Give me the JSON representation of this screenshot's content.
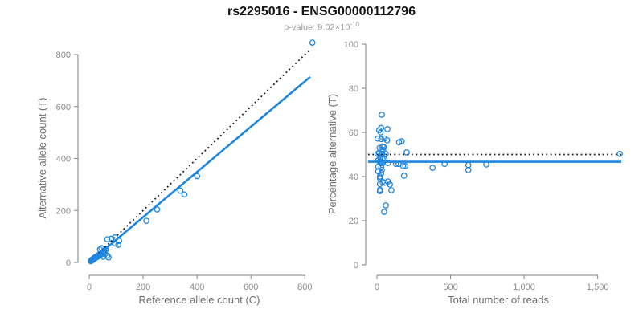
{
  "header": {
    "title": "rs2295016 - ENSG00000112796",
    "pvalue_prefix": "p-value: 9.02×10",
    "pvalue_exponent": "-10"
  },
  "colors": {
    "accent_blue": "#1f86e0",
    "dotted_black": "#1a1a1a",
    "axis_line": "#828282",
    "tick_label": "#8c8c8c",
    "axis_title": "#6e6e6e",
    "title": "#141414",
    "subtitle": "#9a9a9a",
    "background": "#ffffff"
  },
  "chart_data": [
    {
      "name": "allele-count-scatter",
      "type": "scatter",
      "xlabel": "Reference allele count (C)",
      "ylabel": "Alternative allele count (T)",
      "xlim": [
        0,
        800
      ],
      "ylim": [
        0,
        800
      ],
      "xticks": [
        0,
        200,
        400,
        600,
        800
      ],
      "xtick_labels": [
        "0",
        "200",
        "400",
        "600",
        "800"
      ],
      "yticks": [
        0,
        200,
        400,
        600,
        800
      ],
      "ytick_labels": [
        "0",
        "200",
        "400",
        "600",
        "800"
      ],
      "grid": false,
      "legend": "none",
      "point_color": "#1f86e0",
      "points": [
        [
          6,
          5
        ],
        [
          8,
          7
        ],
        [
          9,
          10
        ],
        [
          11,
          8
        ],
        [
          12,
          12
        ],
        [
          14,
          10
        ],
        [
          15,
          14
        ],
        [
          17,
          13
        ],
        [
          18,
          17
        ],
        [
          20,
          15
        ],
        [
          21,
          19
        ],
        [
          23,
          17
        ],
        [
          24,
          21
        ],
        [
          26,
          19
        ],
        [
          27,
          23
        ],
        [
          29,
          21
        ],
        [
          30,
          25
        ],
        [
          32,
          23
        ],
        [
          33,
          27
        ],
        [
          35,
          25
        ],
        [
          36,
          29
        ],
        [
          38,
          27
        ],
        [
          39,
          31
        ],
        [
          41,
          29
        ],
        [
          42,
          33
        ],
        [
          44,
          31
        ],
        [
          46,
          35
        ],
        [
          48,
          33
        ],
        [
          50,
          37
        ],
        [
          52,
          22
        ],
        [
          53,
          40
        ],
        [
          55,
          44
        ],
        [
          57,
          38
        ],
        [
          60,
          48
        ],
        [
          63,
          52
        ],
        [
          67,
          27
        ],
        [
          72,
          19
        ],
        [
          45,
          55
        ],
        [
          40,
          50
        ],
        [
          67,
          89
        ],
        [
          82,
          91
        ],
        [
          96,
          73
        ],
        [
          108,
          68
        ],
        [
          96,
          96
        ],
        [
          111,
          83
        ],
        [
          212,
          160
        ],
        [
          252,
          204
        ],
        [
          338,
          276
        ],
        [
          353,
          262
        ],
        [
          400,
          332
        ],
        [
          828,
          846
        ]
      ],
      "lines": [
        {
          "name": "identity",
          "style": "dotted",
          "color": "#1a1a1a",
          "width": 1.8,
          "x": [
            0,
            818
          ],
          "y": [
            0,
            818
          ]
        },
        {
          "name": "fit",
          "style": "solid",
          "color": "#1f86e0",
          "width": 2.6,
          "x": [
            0,
            820
          ],
          "y": [
            0,
            714
          ]
        }
      ]
    },
    {
      "name": "percentage-vs-reads-scatter",
      "type": "scatter",
      "xlabel": "Total number of reads",
      "ylabel": "Percentage alternative (T)",
      "xlim": [
        0,
        1500
      ],
      "ylim": [
        0,
        100
      ],
      "xticks": [
        0,
        500,
        1000,
        1500
      ],
      "xtick_labels": [
        "0",
        "500",
        "1,000",
        "1,500"
      ],
      "yticks": [
        0,
        20,
        40,
        60,
        80,
        100
      ],
      "ytick_labels": [
        "0",
        "20",
        "40",
        "60",
        "80",
        "100"
      ],
      "grid": false,
      "legend": "none",
      "point_color": "#1f86e0",
      "points": [
        [
          33,
          68
        ],
        [
          15,
          61
        ],
        [
          29,
          62
        ],
        [
          25,
          60
        ],
        [
          71,
          61.5
        ],
        [
          5,
          57.2
        ],
        [
          29,
          57
        ],
        [
          50,
          57.2
        ],
        [
          69,
          56.4
        ],
        [
          150,
          55.5
        ],
        [
          168,
          56
        ],
        [
          18,
          53
        ],
        [
          38,
          53.6
        ],
        [
          47,
          53.3
        ],
        [
          42,
          52
        ],
        [
          32,
          52.1
        ],
        [
          5,
          50.3
        ],
        [
          15,
          50.7
        ],
        [
          29,
          50
        ],
        [
          36,
          50.3
        ],
        [
          60,
          50.3
        ],
        [
          202,
          50.9
        ],
        [
          23,
          48.5
        ],
        [
          38,
          47.9
        ],
        [
          50,
          47.9
        ],
        [
          9,
          47.3
        ],
        [
          20,
          46.8
        ],
        [
          25,
          46.5
        ],
        [
          30,
          46.3
        ],
        [
          33,
          46.6
        ],
        [
          27,
          46
        ],
        [
          38,
          46.1
        ],
        [
          74,
          46.1
        ],
        [
          129,
          45.7
        ],
        [
          147,
          45.7
        ],
        [
          178,
          44.8
        ],
        [
          193,
          44.8
        ],
        [
          9,
          44.5
        ],
        [
          29,
          44.2
        ],
        [
          378,
          44
        ],
        [
          460,
          45.7
        ],
        [
          621,
          45.2
        ],
        [
          621,
          43
        ],
        [
          743,
          45.5
        ],
        [
          33,
          43
        ],
        [
          9,
          42.4
        ],
        [
          29,
          41.5
        ],
        [
          20,
          40
        ],
        [
          20,
          39.3
        ],
        [
          184,
          40.4
        ],
        [
          38,
          37.6
        ],
        [
          54,
          37.2
        ],
        [
          74,
          37.8
        ],
        [
          20,
          36.6
        ],
        [
          88,
          36.4
        ],
        [
          20,
          34
        ],
        [
          20,
          33.4
        ],
        [
          98,
          33.8
        ],
        [
          60,
          26.9
        ],
        [
          49,
          24
        ],
        [
          1650,
          50.3
        ]
      ],
      "lines": [
        {
          "name": "expected-50pct",
          "style": "dotted",
          "color": "#1a1a1a",
          "width": 1.8,
          "x": [
            -60,
            1660
          ],
          "y": [
            50,
            50
          ]
        },
        {
          "name": "fit",
          "style": "solid",
          "color": "#1f86e0",
          "width": 2.6,
          "x": [
            -60,
            1660
          ],
          "y": [
            46.7,
            46.7
          ]
        }
      ]
    }
  ]
}
